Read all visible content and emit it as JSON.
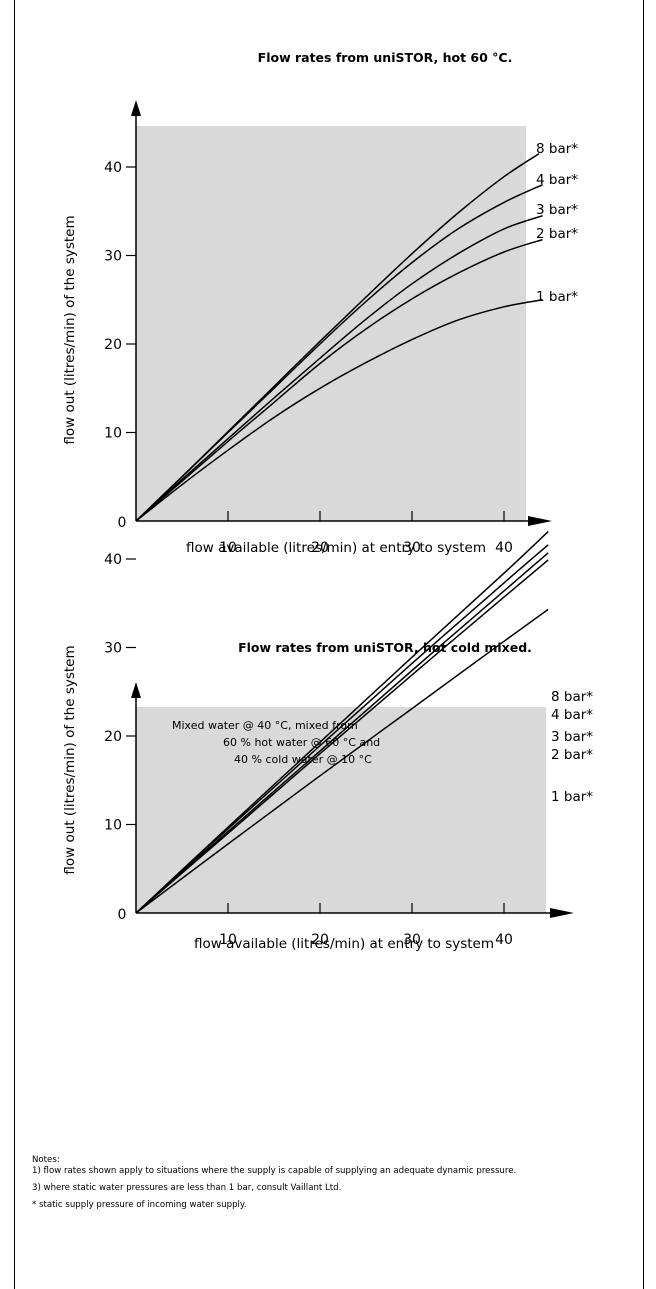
{
  "chart_data": [
    {
      "type": "line",
      "title": "Flow rates from uniSTOR, hot 60 °C.",
      "xlabel": "flow available (litres/min) at entry to system",
      "ylabel": "flow out (litres/min) of the system",
      "xticks": [
        "10",
        "20",
        "30",
        "40"
      ],
      "yticks": [
        "10",
        "20",
        "30",
        "40"
      ],
      "origin_label": "0",
      "xlim": [
        0,
        45
      ],
      "ylim": [
        0,
        45
      ],
      "grid": false,
      "background": "#d9d9d9",
      "annotation": [],
      "series": [
        {
          "name": "8 bar*",
          "x": [
            0,
            5,
            10,
            15,
            20,
            25,
            30,
            35,
            40,
            43.8
          ],
          "y": [
            0,
            5.0,
            10.1,
            15.2,
            20.3,
            25.3,
            30.2,
            34.8,
            38.9,
            41.5
          ]
        },
        {
          "name": "4 bar*",
          "x": [
            0,
            5,
            10,
            15,
            20,
            25,
            30,
            35,
            40,
            44.2
          ],
          "y": [
            0,
            5.0,
            10.0,
            15.0,
            20.0,
            24.8,
            29.2,
            33.0,
            36.0,
            38.0
          ]
        },
        {
          "name": "3 bar*",
          "x": [
            0,
            5,
            10,
            15,
            20,
            25,
            30,
            35,
            40,
            44.2
          ],
          "y": [
            0,
            4.7,
            9.3,
            13.9,
            18.4,
            22.8,
            26.8,
            30.2,
            33.0,
            34.5
          ]
        },
        {
          "name": "2 bar*",
          "x": [
            0,
            5,
            10,
            15,
            20,
            25,
            30,
            35,
            40,
            44.2
          ],
          "y": [
            0,
            4.5,
            9.0,
            13.4,
            17.8,
            21.7,
            25.1,
            28.0,
            30.4,
            31.8
          ]
        },
        {
          "name": "1 bar*",
          "x": [
            0,
            5,
            10,
            15,
            20,
            25,
            30,
            35,
            40,
            44.2
          ],
          "y": [
            0,
            4.1,
            8.0,
            11.7,
            15.0,
            17.9,
            20.5,
            22.7,
            24.2,
            25.0
          ]
        }
      ]
    },
    {
      "type": "line",
      "title": "Flow rates from uniSTOR, hot cold mixed.",
      "xlabel": "flow available (litres/min) at entry to system",
      "ylabel": "flow out (litres/min) of the system",
      "xticks": [
        "10",
        "20",
        "30",
        "40"
      ],
      "yticks": [
        "10",
        "20",
        "30",
        "40"
      ],
      "origin_label": "0",
      "xlim": [
        0,
        47
      ],
      "ylim": [
        0,
        47
      ],
      "grid": false,
      "background": "#d9d9d9",
      "annotation": [
        "Mixed water @ 40 °C, mixed from",
        "60 % hot water @ 60 °C and",
        "40 % cold water @ 10 °C"
      ],
      "series": [
        {
          "name": "8 bar*",
          "x": [
            0,
            10,
            20,
            30,
            40,
            44.8
          ],
          "y": [
            0,
            9.7,
            19.3,
            28.9,
            38.4,
            43.1
          ]
        },
        {
          "name": "4 bar*",
          "x": [
            0,
            10,
            20,
            30,
            40,
            44.8
          ],
          "y": [
            0,
            9.5,
            18.9,
            28.2,
            37.3,
            41.6
          ]
        },
        {
          "name": "3 bar*",
          "x": [
            0,
            10,
            20,
            30,
            40,
            44.8
          ],
          "y": [
            0,
            9.2,
            18.3,
            27.4,
            36.4,
            40.7
          ]
        },
        {
          "name": "2 bar*",
          "x": [
            0,
            10,
            20,
            30,
            40,
            44.8
          ],
          "y": [
            0,
            9.0,
            18.0,
            26.9,
            35.7,
            39.9
          ]
        },
        {
          "name": "1 bar*",
          "x": [
            0,
            10,
            20,
            30,
            40,
            44.8
          ],
          "y": [
            0,
            7.8,
            15.5,
            23.1,
            30.7,
            34.3
          ]
        }
      ]
    }
  ],
  "notes": {
    "heading": "Notes:",
    "line1": "1) flow rates shown apply to situations where the supply is capable of supplying an adequate dynamic pressure.",
    "line2": "3) where static water pressures are less than 1 bar, consult Vaillant Ltd.",
    "line3": "* static supply pressure of incoming water supply."
  }
}
